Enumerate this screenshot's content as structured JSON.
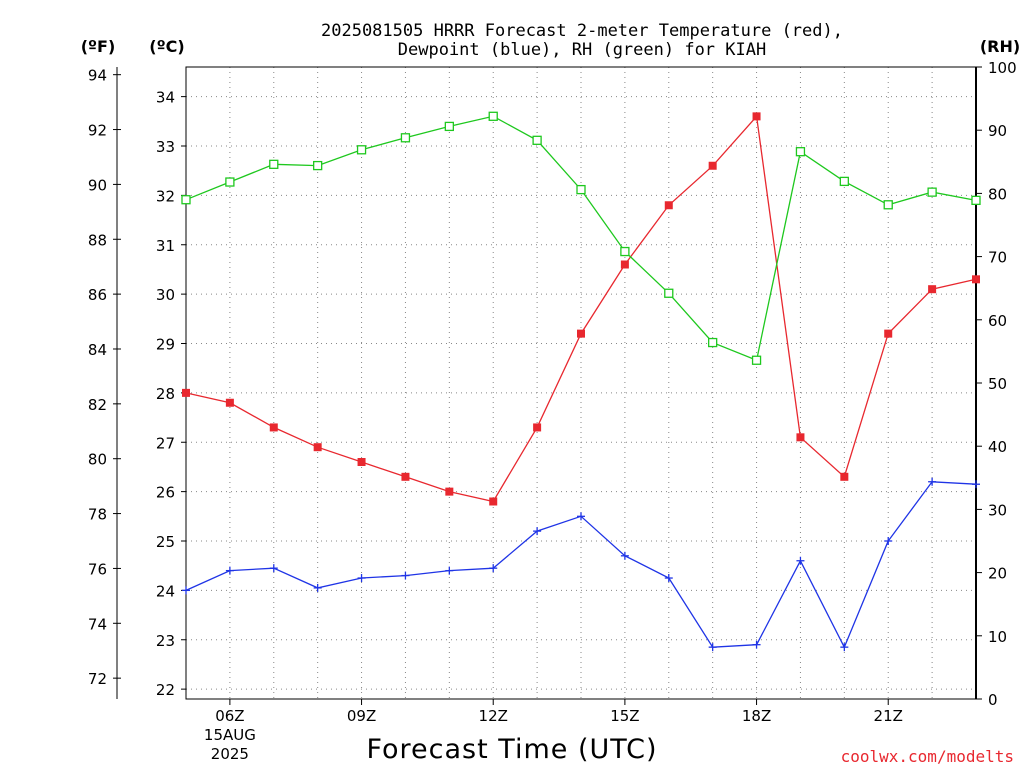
{
  "chart_data": {
    "type": "line",
    "title_line1": "2025081505 HRRR Forecast 2-meter Temperature (red),",
    "title_line2": "Dewpoint (blue), RH (green) for KIAH",
    "xlabel": "Forecast Time (UTC)",
    "credit": "coolwx.com/modelts",
    "y_left_f_label": "(ºF)",
    "y_left_c_label": "(ºC)",
    "y_right_label": "(RH)",
    "x_hours": [
      5,
      6,
      7,
      8,
      9,
      10,
      11,
      12,
      13,
      14,
      15,
      16,
      17,
      18,
      19,
      20,
      21,
      22,
      23
    ],
    "x_ticks": [
      {
        "hour": 6,
        "label": "06Z",
        "sub1": "15AUG",
        "sub2": "2025"
      },
      {
        "hour": 9,
        "label": "09Z"
      },
      {
        "hour": 12,
        "label": "12Z"
      },
      {
        "hour": 15,
        "label": "15Z"
      },
      {
        "hour": 18,
        "label": "18Z"
      },
      {
        "hour": 21,
        "label": "21Z"
      }
    ],
    "xlim": [
      5,
      23
    ],
    "ylim_c": [
      21.8,
      34.6
    ],
    "ylim_f": [
      71.24,
      94.28
    ],
    "ylim_rh": [
      0,
      100
    ],
    "y_ticks_f": [
      72,
      74,
      76,
      78,
      80,
      82,
      84,
      86,
      88,
      90,
      92,
      94
    ],
    "y_ticks_c": [
      22,
      23,
      24,
      25,
      26,
      27,
      28,
      29,
      30,
      31,
      32,
      33,
      34
    ],
    "y_ticks_rh": [
      0,
      10,
      20,
      30,
      40,
      50,
      60,
      70,
      80,
      90,
      100
    ],
    "grid": true,
    "series": [
      {
        "name": "Temperature (red)",
        "color": "#e8282f",
        "axis": "C",
        "marker": "filled-square",
        "values": [
          28.0,
          27.8,
          27.3,
          26.9,
          26.6,
          26.3,
          26.0,
          25.8,
          27.3,
          29.2,
          30.6,
          31.8,
          32.6,
          33.6,
          27.1,
          26.3,
          29.2,
          30.1,
          30.3
        ]
      },
      {
        "name": "Dewpoint (blue)",
        "color": "#1f34e6",
        "axis": "C",
        "marker": "plus",
        "values": [
          24.0,
          24.4,
          24.45,
          24.05,
          24.25,
          24.3,
          24.4,
          24.45,
          25.2,
          25.5,
          24.7,
          24.25,
          22.85,
          22.9,
          24.6,
          22.85,
          25.0,
          26.2,
          26.15
        ]
      },
      {
        "name": "RH (green)",
        "color": "#1ec81e",
        "axis": "RH",
        "marker": "open-square",
        "values": [
          79.0,
          81.8,
          84.6,
          84.4,
          86.9,
          88.8,
          90.6,
          92.2,
          88.4,
          80.6,
          70.8,
          64.2,
          56.4,
          53.6,
          86.6,
          81.9,
          78.2,
          80.2,
          78.9
        ]
      }
    ]
  }
}
